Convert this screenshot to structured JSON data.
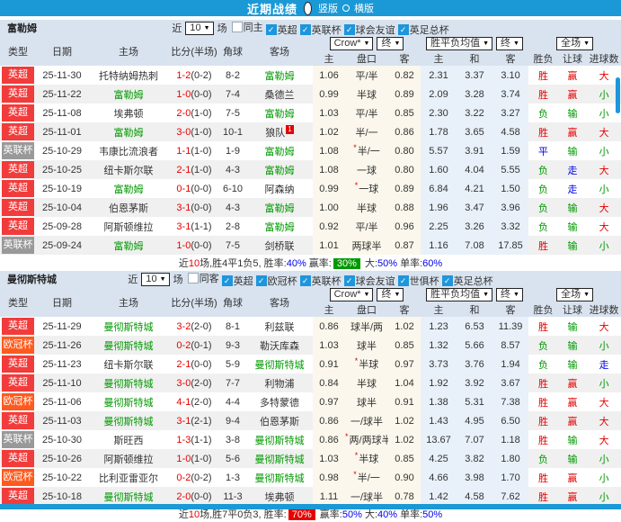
{
  "topbar": {
    "title": "近期战绩",
    "views": [
      {
        "label": "竖版",
        "selected": true
      },
      {
        "label": "横版",
        "selected": false
      }
    ]
  },
  "colors": {
    "accent": "#1a99d6",
    "checkbox": "#1e96dc",
    "league": {
      "英超": "#f23b3b",
      "英联杯": "#999999",
      "欧冠杯": "#ff5a1e"
    },
    "team_highlight": "#009900",
    "score": "#e60000",
    "win": "#e60000",
    "draw": "#0000ee",
    "lose": "#009900"
  },
  "sections": [
    {
      "team": "富勒姆",
      "filter": {
        "recent_label": "近",
        "count": "10",
        "games_label": "场",
        "checkboxes": [
          {
            "label": "同主",
            "checked": false
          },
          {
            "label": "英超",
            "checked": true
          },
          {
            "label": "英联杯",
            "checked": true
          },
          {
            "label": "球会友谊",
            "checked": true
          },
          {
            "label": "英足总杯",
            "checked": true
          }
        ]
      },
      "selects": {
        "bookmaker": "Crow*",
        "book_final": "终",
        "avg": "胜平负均值",
        "avg_final": "终",
        "scope": "全场"
      },
      "columns": {
        "type": "类型",
        "date": "日期",
        "home": "主场",
        "score": "比分(半场)",
        "corner": "角球",
        "away": "客场",
        "asian": [
          "主",
          "盘口",
          "客"
        ],
        "euro": [
          "主",
          "和",
          "客"
        ],
        "result": "胜负",
        "handicap": "让球",
        "goals": "进球数"
      },
      "rows": [
        {
          "league": "英超",
          "date": "25-11-30",
          "home": "托特纳姆热刺",
          "home_hl": false,
          "score": "1-2",
          "half": "(0-2)",
          "corner": "8-2",
          "away": "富勒姆",
          "away_hl": true,
          "away_note": "",
          "h_home": "1.06",
          "star": false,
          "line": "平/半",
          "h_away": "0.82",
          "e_home": "2.31",
          "e_draw": "3.37",
          "e_away": "3.10",
          "result": "胜",
          "handicap": "赢",
          "goals": "大"
        },
        {
          "league": "英超",
          "date": "25-11-22",
          "home": "富勒姆",
          "home_hl": true,
          "score": "1-0",
          "half": "(0-0)",
          "corner": "7-4",
          "away": "桑德兰",
          "away_hl": false,
          "away_note": "",
          "h_home": "0.99",
          "star": false,
          "line": "半球",
          "h_away": "0.89",
          "e_home": "2.09",
          "e_draw": "3.28",
          "e_away": "3.74",
          "result": "胜",
          "handicap": "赢",
          "goals": "小"
        },
        {
          "league": "英超",
          "date": "25-11-08",
          "home": "埃弗顿",
          "home_hl": false,
          "score": "2-0",
          "half": "(1-0)",
          "corner": "7-5",
          "away": "富勒姆",
          "away_hl": true,
          "away_note": "",
          "h_home": "1.03",
          "star": false,
          "line": "平/半",
          "h_away": "0.85",
          "e_home": "2.30",
          "e_draw": "3.22",
          "e_away": "3.27",
          "result": "负",
          "handicap": "输",
          "goals": "小"
        },
        {
          "league": "英超",
          "date": "25-11-01",
          "home": "富勒姆",
          "home_hl": true,
          "score": "3-0",
          "half": "(1-0)",
          "corner": "10-1",
          "away": "狼队",
          "away_hl": false,
          "away_note": "1",
          "h_home": "1.02",
          "star": false,
          "line": "半/一",
          "h_away": "0.86",
          "e_home": "1.78",
          "e_draw": "3.65",
          "e_away": "4.58",
          "result": "胜",
          "handicap": "赢",
          "goals": "大"
        },
        {
          "league": "英联杯",
          "date": "25-10-29",
          "home": "韦康比流浪者",
          "home_hl": false,
          "score": "1-1",
          "half": "(1-0)",
          "corner": "1-9",
          "away": "富勒姆",
          "away_hl": true,
          "away_note": "",
          "h_home": "1.08",
          "star": true,
          "line": "半/一",
          "h_away": "0.80",
          "e_home": "5.57",
          "e_draw": "3.91",
          "e_away": "1.59",
          "result": "平",
          "handicap": "输",
          "goals": "小"
        },
        {
          "league": "英超",
          "date": "25-10-25",
          "home": "纽卡斯尔联",
          "home_hl": false,
          "score": "2-1",
          "half": "(1-0)",
          "corner": "4-3",
          "away": "富勒姆",
          "away_hl": true,
          "away_note": "",
          "h_home": "1.08",
          "star": false,
          "line": "一球",
          "h_away": "0.80",
          "e_home": "1.60",
          "e_draw": "4.04",
          "e_away": "5.55",
          "result": "负",
          "handicap": "走",
          "goals": "大"
        },
        {
          "league": "英超",
          "date": "25-10-19",
          "home": "富勒姆",
          "home_hl": true,
          "score": "0-1",
          "half": "(0-0)",
          "corner": "6-10",
          "away": "阿森纳",
          "away_hl": false,
          "away_note": "",
          "h_home": "0.99",
          "star": true,
          "line": "一球",
          "h_away": "0.89",
          "e_home": "6.84",
          "e_draw": "4.21",
          "e_away": "1.50",
          "result": "负",
          "handicap": "走",
          "goals": "小"
        },
        {
          "league": "英超",
          "date": "25-10-04",
          "home": "伯恩茅斯",
          "home_hl": false,
          "score": "3-1",
          "half": "(0-0)",
          "corner": "4-3",
          "away": "富勒姆",
          "away_hl": true,
          "away_note": "",
          "h_home": "1.00",
          "star": false,
          "line": "半球",
          "h_away": "0.88",
          "e_home": "1.96",
          "e_draw": "3.47",
          "e_away": "3.96",
          "result": "负",
          "handicap": "输",
          "goals": "大"
        },
        {
          "league": "英超",
          "date": "25-09-28",
          "home": "阿斯顿维拉",
          "home_hl": false,
          "score": "3-1",
          "half": "(1-1)",
          "corner": "2-8",
          "away": "富勒姆",
          "away_hl": true,
          "away_note": "",
          "h_home": "0.92",
          "star": false,
          "line": "平/半",
          "h_away": "0.96",
          "e_home": "2.25",
          "e_draw": "3.26",
          "e_away": "3.32",
          "result": "负",
          "handicap": "输",
          "goals": "大"
        },
        {
          "league": "英联杯",
          "date": "25-09-24",
          "home": "富勒姆",
          "home_hl": true,
          "score": "1-0",
          "half": "(0-0)",
          "corner": "7-5",
          "away": "剑桥联",
          "away_hl": false,
          "away_note": "",
          "h_home": "1.01",
          "star": false,
          "line": "两球半",
          "h_away": "0.87",
          "e_home": "1.16",
          "e_draw": "7.08",
          "e_away": "17.85",
          "result": "胜",
          "handicap": "输",
          "goals": "小"
        }
      ],
      "summary": [
        {
          "t": "近"
        },
        {
          "t": "10",
          "c": "red"
        },
        {
          "t": "场,胜4平1负5, 胜率:"
        },
        {
          "t": "40%",
          "c": "blue"
        },
        {
          "t": " 赢率:"
        },
        {
          "t": "30%",
          "badge": "green"
        },
        {
          "t": " 大:"
        },
        {
          "t": "50%",
          "c": "blue"
        },
        {
          "t": " 单率:"
        },
        {
          "t": "60%",
          "c": "blue"
        }
      ]
    },
    {
      "team": "曼彻斯特城",
      "filter": {
        "recent_label": "近",
        "count": "10",
        "games_label": "场",
        "checkboxes": [
          {
            "label": "同客",
            "checked": false
          },
          {
            "label": "英超",
            "checked": true
          },
          {
            "label": "欧冠杯",
            "checked": true
          },
          {
            "label": "英联杯",
            "checked": true
          },
          {
            "label": "球会友谊",
            "checked": true
          },
          {
            "label": "世俱杯",
            "checked": true
          },
          {
            "label": "英足总杯",
            "checked": true
          }
        ]
      },
      "selects": {
        "bookmaker": "Crow*",
        "book_final": "终",
        "avg": "胜平负均值",
        "avg_final": "终",
        "scope": "全场"
      },
      "columns": {
        "type": "类型",
        "date": "日期",
        "home": "主场",
        "score": "比分(半场)",
        "corner": "角球",
        "away": "客场",
        "asian": [
          "主",
          "盘口",
          "客"
        ],
        "euro": [
          "主",
          "和",
          "客"
        ],
        "result": "胜负",
        "handicap": "让球",
        "goals": "进球数"
      },
      "rows": [
        {
          "league": "英超",
          "date": "25-11-29",
          "home": "曼彻斯特城",
          "home_hl": true,
          "score": "3-2",
          "half": "(2-0)",
          "corner": "8-1",
          "away": "利兹联",
          "away_hl": false,
          "away_note": "",
          "h_home": "0.86",
          "star": false,
          "line": "球半/两",
          "h_away": "1.02",
          "e_home": "1.23",
          "e_draw": "6.53",
          "e_away": "11.39",
          "result": "胜",
          "handicap": "输",
          "goals": "大"
        },
        {
          "league": "欧冠杯",
          "date": "25-11-26",
          "home": "曼彻斯特城",
          "home_hl": true,
          "score": "0-2",
          "half": "(0-1)",
          "corner": "9-3",
          "away": "勒沃库森",
          "away_hl": false,
          "away_note": "",
          "h_home": "1.03",
          "star": false,
          "line": "球半",
          "h_away": "0.85",
          "e_home": "1.32",
          "e_draw": "5.66",
          "e_away": "8.57",
          "result": "负",
          "handicap": "输",
          "goals": "小"
        },
        {
          "league": "英超",
          "date": "25-11-23",
          "home": "纽卡斯尔联",
          "home_hl": false,
          "score": "2-1",
          "half": "(0-0)",
          "corner": "5-9",
          "away": "曼彻斯特城",
          "away_hl": true,
          "away_note": "",
          "h_home": "0.91",
          "star": true,
          "line": "半球",
          "h_away": "0.97",
          "e_home": "3.73",
          "e_draw": "3.76",
          "e_away": "1.94",
          "result": "负",
          "handicap": "输",
          "goals": "走"
        },
        {
          "league": "英超",
          "date": "25-11-10",
          "home": "曼彻斯特城",
          "home_hl": true,
          "score": "3-0",
          "half": "(2-0)",
          "corner": "7-7",
          "away": "利物浦",
          "away_hl": false,
          "away_note": "",
          "h_home": "0.84",
          "star": false,
          "line": "半球",
          "h_away": "1.04",
          "e_home": "1.92",
          "e_draw": "3.92",
          "e_away": "3.67",
          "result": "胜",
          "handicap": "赢",
          "goals": "小"
        },
        {
          "league": "欧冠杯",
          "date": "25-11-06",
          "home": "曼彻斯特城",
          "home_hl": true,
          "score": "4-1",
          "half": "(2-0)",
          "corner": "4-4",
          "away": "多特蒙德",
          "away_hl": false,
          "away_note": "",
          "h_home": "0.97",
          "star": false,
          "line": "球半",
          "h_away": "0.91",
          "e_home": "1.38",
          "e_draw": "5.31",
          "e_away": "7.38",
          "result": "胜",
          "handicap": "赢",
          "goals": "大"
        },
        {
          "league": "英超",
          "date": "25-11-03",
          "home": "曼彻斯特城",
          "home_hl": true,
          "score": "3-1",
          "half": "(2-1)",
          "corner": "9-4",
          "away": "伯恩茅斯",
          "away_hl": false,
          "away_note": "",
          "h_home": "0.86",
          "star": false,
          "line": "一/球半",
          "h_away": "1.02",
          "e_home": "1.43",
          "e_draw": "4.95",
          "e_away": "6.50",
          "result": "胜",
          "handicap": "赢",
          "goals": "大"
        },
        {
          "league": "英联杯",
          "date": "25-10-30",
          "home": "斯旺西",
          "home_hl": false,
          "score": "1-3",
          "half": "(1-1)",
          "corner": "3-8",
          "away": "曼彻斯特城",
          "away_hl": true,
          "away_note": "",
          "h_home": "0.86",
          "star": true,
          "line": "两/两球半",
          "h_away": "1.02",
          "e_home": "13.67",
          "e_draw": "7.07",
          "e_away": "1.18",
          "result": "胜",
          "handicap": "输",
          "goals": "大"
        },
        {
          "league": "英超",
          "date": "25-10-26",
          "home": "阿斯顿维拉",
          "home_hl": false,
          "score": "1-0",
          "half": "(1-0)",
          "corner": "5-6",
          "away": "曼彻斯特城",
          "away_hl": true,
          "away_note": "",
          "h_home": "1.03",
          "star": true,
          "line": "半球",
          "h_away": "0.85",
          "e_home": "4.25",
          "e_draw": "3.82",
          "e_away": "1.80",
          "result": "负",
          "handicap": "输",
          "goals": "小"
        },
        {
          "league": "欧冠杯",
          "date": "25-10-22",
          "home": "比利亚雷亚尔",
          "home_hl": false,
          "score": "0-2",
          "half": "(0-2)",
          "corner": "1-3",
          "away": "曼彻斯特城",
          "away_hl": true,
          "away_note": "",
          "h_home": "0.98",
          "star": true,
          "line": "半/一",
          "h_away": "0.90",
          "e_home": "4.66",
          "e_draw": "3.98",
          "e_away": "1.70",
          "result": "胜",
          "handicap": "赢",
          "goals": "小"
        },
        {
          "league": "英超",
          "date": "25-10-18",
          "home": "曼彻斯特城",
          "home_hl": true,
          "score": "2-0",
          "half": "(0-0)",
          "corner": "11-3",
          "away": "埃弗顿",
          "away_hl": false,
          "away_note": "",
          "h_home": "1.11",
          "star": false,
          "line": "一/球半",
          "h_away": "0.78",
          "e_home": "1.42",
          "e_draw": "4.58",
          "e_away": "7.62",
          "result": "胜",
          "handicap": "赢",
          "goals": "小"
        }
      ],
      "summary": [
        {
          "t": "近"
        },
        {
          "t": "10",
          "c": "red"
        },
        {
          "t": "场,胜7平0负3, 胜率:"
        },
        {
          "t": "70%",
          "badge": "red"
        },
        {
          "t": " 赢率:"
        },
        {
          "t": "50%",
          "c": "blue"
        },
        {
          "t": " 大:"
        },
        {
          "t": "40%",
          "c": "blue"
        },
        {
          "t": " 单率:"
        },
        {
          "t": "50%",
          "c": "blue"
        }
      ]
    }
  ]
}
